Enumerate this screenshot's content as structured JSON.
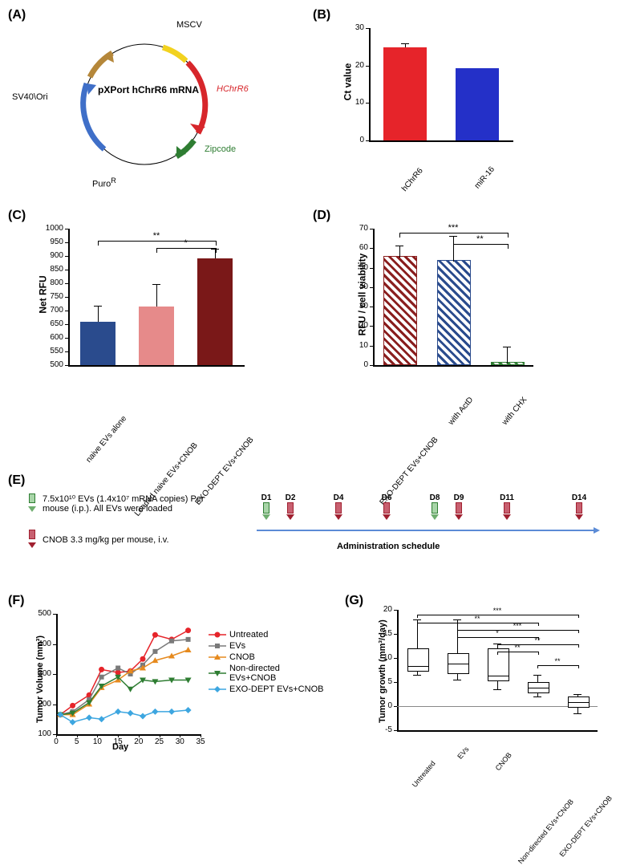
{
  "panelA": {
    "label": "(A)",
    "center_text": "pXPort hChrR6 mRNA",
    "segments": [
      {
        "label": "MSCV",
        "color": "#f2d21f",
        "labelColor": "#000"
      },
      {
        "label": "HChrR6",
        "color": "#d7262b",
        "labelColor": "#d7262b",
        "italic": true
      },
      {
        "label": "Zipcode",
        "color": "#2e7d32",
        "labelColor": "#2e7d32"
      },
      {
        "label": "Puro",
        "super": "R",
        "color": "#3f6fc8",
        "labelColor": "#000"
      },
      {
        "label": "SV40\\Ori",
        "color": "#b5873a",
        "labelColor": "#000"
      }
    ]
  },
  "panelB": {
    "label": "(B)",
    "type": "bar",
    "y_title": "Ct value",
    "y_range": [
      0,
      30
    ],
    "y_step": 10,
    "bars": [
      {
        "label": "hChrR6",
        "value": 24.8,
        "err": 1.0,
        "color": "#e6242a"
      },
      {
        "label": "miR-16",
        "value": 19.3,
        "err": 0,
        "color": "#2430c8"
      }
    ]
  },
  "panelC": {
    "label": "(C)",
    "type": "bar",
    "y_title": "Net RFU",
    "y_range": [
      500,
      1000
    ],
    "y_step": 50,
    "bars": [
      {
        "label": "naive EVs alone",
        "value": 660,
        "err": 55,
        "color": "#2a4b8d"
      },
      {
        "label": "Loaded naive EVs+CNOB",
        "value": 715,
        "err": 80,
        "color": "#e68a8a"
      },
      {
        "label": "EXO-DEPT EVs+CNOB",
        "value": 890,
        "err": 35,
        "color": "#7a1818"
      }
    ],
    "sig": [
      {
        "from": 0,
        "to": 2,
        "text": "**",
        "y": 955
      },
      {
        "from": 1,
        "to": 2,
        "text": "*",
        "y": 930
      }
    ]
  },
  "panelD": {
    "label": "(D)",
    "type": "bar-hatched",
    "y_title": "RFU / cell viability",
    "y_range": [
      0,
      70
    ],
    "y_step": 10,
    "bars": [
      {
        "label": "EXO-DEPT EVs+CNOB",
        "value": 55,
        "err": 6,
        "class": "hatch-red"
      },
      {
        "label": "with ActD",
        "value": 53,
        "err": 13,
        "class": "hatch-blue"
      },
      {
        "label": "with CHX",
        "value": 1,
        "err": 8,
        "class": "hatch-green"
      }
    ],
    "sig": [
      {
        "from": 0,
        "to": 2,
        "text": "***",
        "y": 68
      },
      {
        "from": 1,
        "to": 2,
        "text": "**",
        "y": 62
      }
    ]
  },
  "panelE": {
    "label": "(E)",
    "legend_ev": "7.5x10¹⁰ EVs (1.4x10⁷ mRNA copies) Per mouse (i.p.). All EVs were loaded",
    "legend_cnob": "CNOB 3.3 mg/kg per mouse, i.v.",
    "schedule_title": "Administration schedule",
    "ev_color": "#6fae6f",
    "cnob_color": "#a02030",
    "days": [
      {
        "label": "D1",
        "ev": true
      },
      {
        "label": "D2",
        "cnob": true
      },
      {
        "label": "D4",
        "cnob": true
      },
      {
        "label": "D6",
        "cnob": true
      },
      {
        "label": "D8",
        "ev": true
      },
      {
        "label": "D9",
        "cnob": true
      },
      {
        "label": "D11",
        "cnob": true
      },
      {
        "label": "D14",
        "cnob": true
      }
    ],
    "positions": [
      0,
      30,
      90,
      150,
      210,
      240,
      300,
      390
    ]
  },
  "panelF": {
    "label": "(F)",
    "type": "line",
    "x_title": "Day",
    "y_title": "Tumor Volume (mm³)",
    "x_range": [
      0,
      35
    ],
    "x_step": 5,
    "y_range": [
      100,
      500
    ],
    "y_step": 100,
    "series": [
      {
        "name": "Untreated",
        "color": "#e6242a",
        "marker": "circle",
        "points": [
          [
            1,
            165
          ],
          [
            4,
            195
          ],
          [
            8,
            230
          ],
          [
            11,
            315
          ],
          [
            15,
            305
          ],
          [
            18,
            310
          ],
          [
            21,
            350
          ],
          [
            24,
            430
          ],
          [
            28,
            415
          ],
          [
            32,
            445
          ]
        ]
      },
      {
        "name": "EVs",
        "color": "#7a7a7a",
        "marker": "square",
        "points": [
          [
            1,
            165
          ],
          [
            4,
            175
          ],
          [
            8,
            215
          ],
          [
            11,
            290
          ],
          [
            15,
            320
          ],
          [
            18,
            300
          ],
          [
            21,
            330
          ],
          [
            24,
            375
          ],
          [
            28,
            410
          ],
          [
            32,
            415
          ]
        ]
      },
      {
        "name": "CNOB",
        "color": "#e68a1e",
        "marker": "triangle",
        "points": [
          [
            1,
            165
          ],
          [
            4,
            165
          ],
          [
            8,
            200
          ],
          [
            11,
            255
          ],
          [
            15,
            280
          ],
          [
            18,
            310
          ],
          [
            21,
            320
          ],
          [
            24,
            345
          ],
          [
            28,
            360
          ],
          [
            32,
            380
          ]
        ]
      },
      {
        "name": "Non-directed EVs+CNOB",
        "color": "#2e7d32",
        "marker": "triangle-down",
        "points": [
          [
            1,
            165
          ],
          [
            4,
            170
          ],
          [
            8,
            205
          ],
          [
            11,
            260
          ],
          [
            15,
            290
          ],
          [
            18,
            250
          ],
          [
            21,
            280
          ],
          [
            24,
            275
          ],
          [
            28,
            280
          ],
          [
            32,
            280
          ]
        ]
      },
      {
        "name": "EXO-DEPT EVs+CNOB",
        "color": "#3da6e0",
        "marker": "diamond",
        "points": [
          [
            1,
            165
          ],
          [
            4,
            140
          ],
          [
            8,
            155
          ],
          [
            11,
            150
          ],
          [
            15,
            175
          ],
          [
            18,
            170
          ],
          [
            21,
            160
          ],
          [
            24,
            175
          ],
          [
            28,
            175
          ],
          [
            32,
            180
          ]
        ]
      }
    ]
  },
  "panelG": {
    "label": "(G)",
    "type": "box",
    "y_title": "Tumor growth (mm³/day)",
    "y_range": [
      -5,
      20
    ],
    "y_step": 5,
    "boxes": [
      {
        "label": "Untreated",
        "min": 6.5,
        "q1": 7.5,
        "median": 8.5,
        "q3": 12,
        "max": 18
      },
      {
        "label": "EVs",
        "min": 5.5,
        "q1": 7,
        "median": 9,
        "q3": 11,
        "max": 18
      },
      {
        "label": "CNOB",
        "min": 3.5,
        "q1": 5.5,
        "median": 6.5,
        "q3": 12,
        "max": 13
      },
      {
        "label": "Non-directed EVs+CNOB",
        "min": 2,
        "q1": 3,
        "median": 4,
        "q3": 5,
        "max": 6.5
      },
      {
        "label": "EXO-DEPT EVs+CNOB",
        "min": -1.5,
        "q1": 0,
        "median": 1,
        "q3": 2,
        "max": 2.5
      }
    ],
    "sig": [
      {
        "from": 0,
        "to": 4,
        "text": "***",
        "y": 19
      },
      {
        "from": 0,
        "to": 3,
        "text": "**",
        "y": 17.3
      },
      {
        "from": 1,
        "to": 4,
        "text": "***",
        "y": 15.8
      },
      {
        "from": 1,
        "to": 3,
        "text": "*",
        "y": 14.3
      },
      {
        "from": 2,
        "to": 4,
        "text": "**",
        "y": 12.8
      },
      {
        "from": 2,
        "to": 3,
        "text": "**",
        "y": 11.3
      },
      {
        "from": 3,
        "to": 4,
        "text": "**",
        "y": 8.5
      }
    ]
  }
}
